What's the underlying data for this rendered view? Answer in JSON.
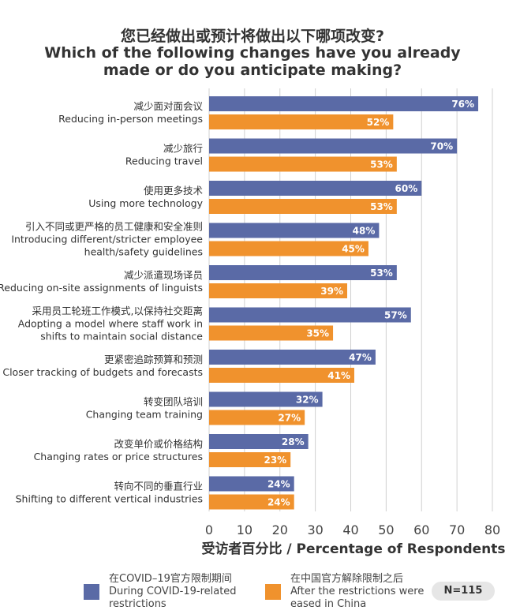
{
  "title": {
    "line1": "您已经做出或预计将做出以下哪项改变?",
    "line2": "Which of the following changes have you already",
    "line3": "made or do you anticipate making?"
  },
  "colors": {
    "series1": "#5a6aa6",
    "series2": "#f0922d",
    "grid": "#d0d0d0"
  },
  "legend": {
    "series1": [
      "在COVID–19官方限制期间",
      "During COVID-19-related",
      "restrictions"
    ],
    "series2": [
      "在中国官方解除限制之后",
      "After the restrictions were",
      "eased in China"
    ]
  },
  "n_label": "N=115",
  "chart_data": {
    "type": "bar",
    "orientation": "horizontal",
    "categories": [
      [
        "减少面对面会议",
        "Reducing in-person meetings"
      ],
      [
        "减少旅行",
        "Reducing travel"
      ],
      [
        "使用更多技术",
        "Using more technology"
      ],
      [
        "引入不同或更严格的员工健康和安全准则",
        "Introducing different/stricter employee",
        "health/safety guidelines"
      ],
      [
        "减少派遣现场译员",
        "Reducing on-site assignments of linguists"
      ],
      [
        "采用员工轮班工作模式,以保持社交距离",
        "Adopting a model where staff work in",
        "shifts to maintain social distance"
      ],
      [
        "更紧密追踪预算和预测",
        "Closer tracking of budgets and forecasts"
      ],
      [
        "转变团队培训",
        "Changing team training"
      ],
      [
        "改变单价或价格结构",
        "Changing rates or price structures"
      ],
      [
        "转向不同的垂直行业",
        "Shifting to different vertical industries"
      ]
    ],
    "series": [
      {
        "name": "在COVID–19官方限制期间 During COVID-19-related restrictions",
        "values": [
          76,
          70,
          60,
          48,
          53,
          57,
          47,
          32,
          28,
          24
        ]
      },
      {
        "name": "在中国官方解除限制之后 After the restrictions were eased in China",
        "values": [
          52,
          53,
          53,
          45,
          39,
          35,
          41,
          27,
          23,
          24
        ]
      }
    ],
    "value_suffix": "%",
    "xlabel": "受访者百分比 / Percentage of Respondents",
    "xlim": [
      0,
      80
    ],
    "xticks": [
      0,
      10,
      20,
      30,
      40,
      50,
      60,
      70,
      80
    ],
    "grid": true,
    "legend_position": "bottom"
  }
}
